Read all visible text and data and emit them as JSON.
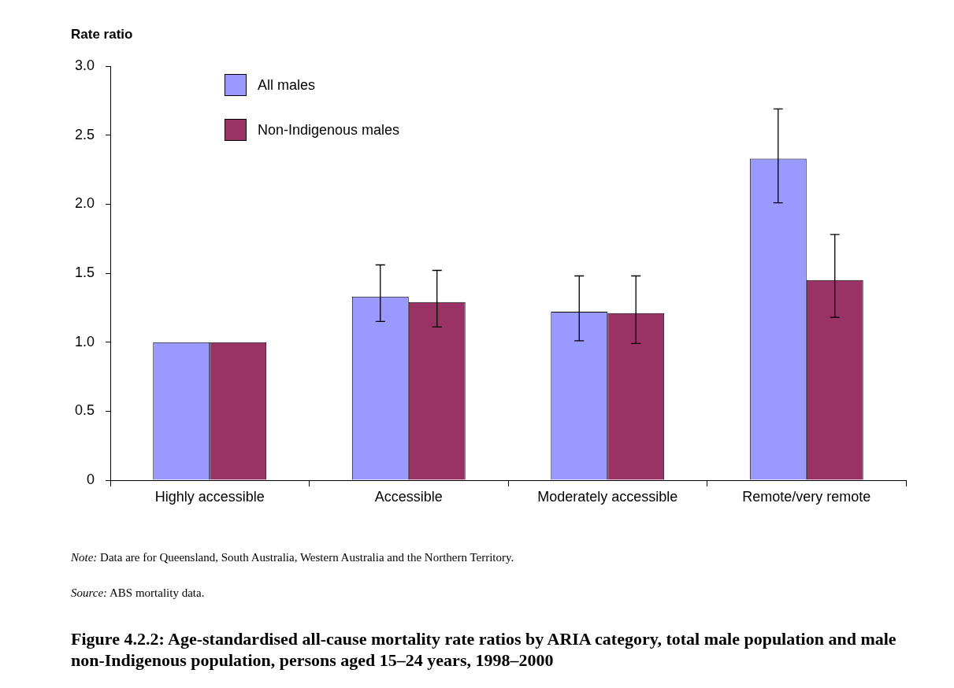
{
  "chart_data": {
    "type": "bar",
    "title": "Figure 4.2.2: Age-standardised all-cause mortality rate ratios by ARIA category, total male population and male non-Indigenous population, persons aged 15–24 years, 1998–2000",
    "ylabel": "Rate ratio",
    "annotations": [
      "Note: Data are for Queensland, South Australia, Western Australia and the Northern Territory.",
      "Source: ABS mortality data."
    ],
    "categories": [
      "Highly accessible",
      "Accessible",
      "Moderately accessible",
      "Remote/very remote"
    ],
    "series": [
      {
        "name": "All males",
        "color": "#9999ff",
        "values": [
          1.0,
          1.33,
          1.22,
          2.33
        ],
        "errors": [
          null,
          [
            1.15,
            1.56
          ],
          [
            1.01,
            1.48
          ],
          [
            2.01,
            2.69
          ]
        ]
      },
      {
        "name": "Non-Indigenous males",
        "color": "#993366",
        "values": [
          1.0,
          1.29,
          1.21,
          1.45
        ],
        "errors": [
          null,
          [
            1.11,
            1.52
          ],
          [
            0.99,
            1.48
          ],
          [
            1.18,
            1.78
          ]
        ]
      }
    ],
    "ylim": [
      0,
      3
    ],
    "yticks": [
      0,
      {
        "value": 0.5,
        "label": "0.5"
      },
      {
        "value": 1,
        "label": "1.0"
      },
      {
        "value": 1.5,
        "label": "1.5"
      },
      {
        "value": 2,
        "label": "2.0"
      },
      {
        "value": 2.5,
        "label": "2.5"
      },
      {
        "value": 3,
        "label": "3.0"
      }
    ],
    "grid": false,
    "legend": "top left"
  }
}
